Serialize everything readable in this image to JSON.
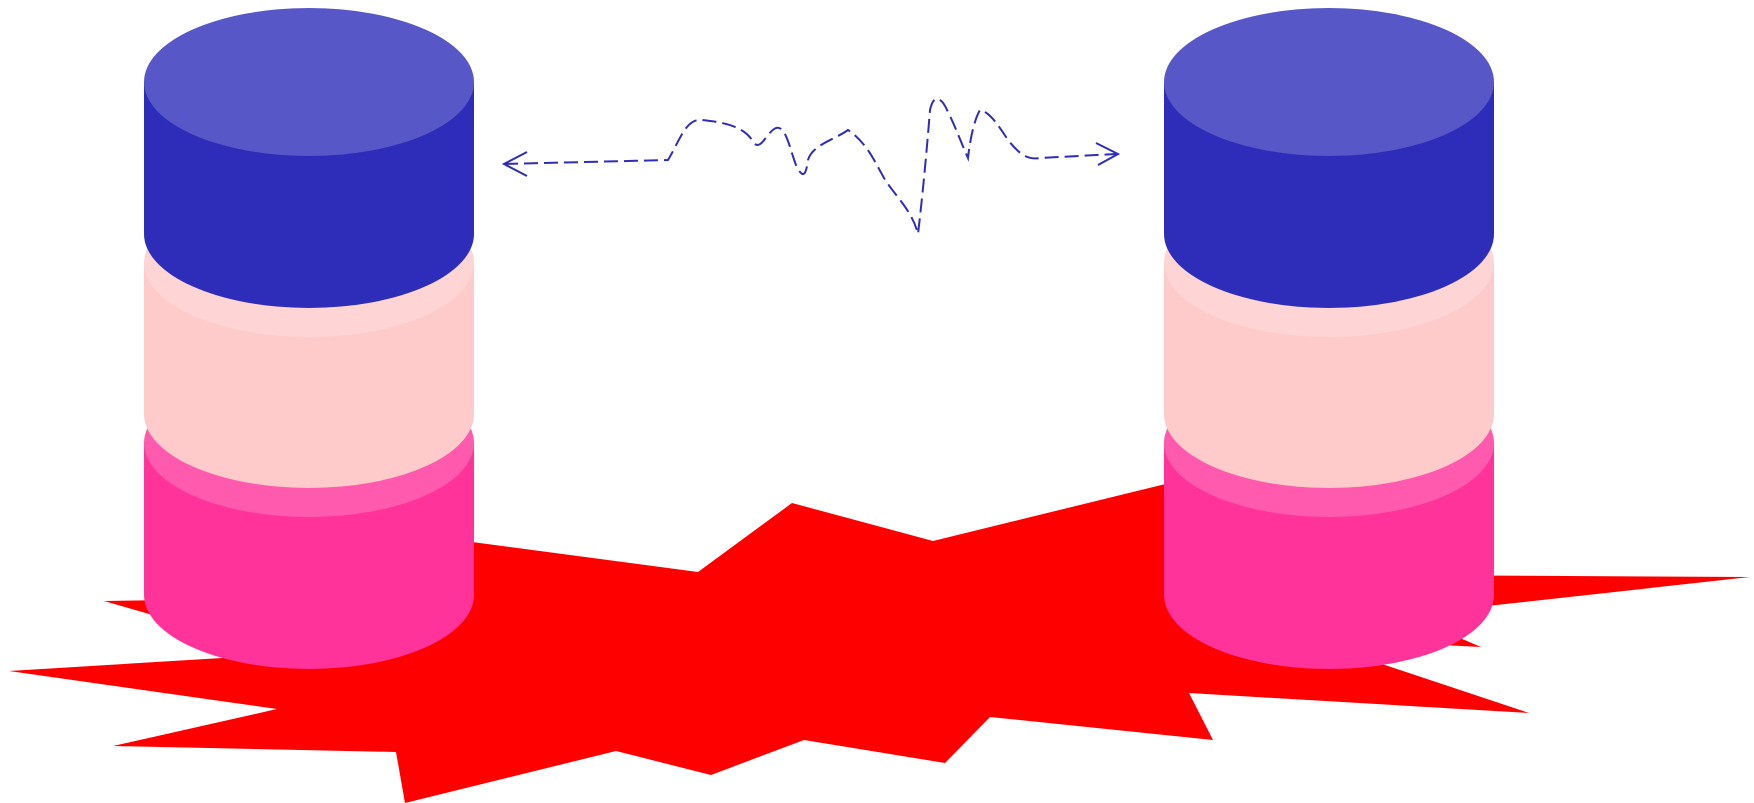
{
  "diagram": {
    "description_elements": [
      "explosion-burst",
      "left-database-stack",
      "right-database-stack",
      "network-connection-arrow"
    ],
    "colors": {
      "burst": "#ff0000",
      "top_side": "#2e2db9",
      "top_cap": "#5757c8",
      "middle_side": "#fecbca",
      "middle_cap": "#fed5d4",
      "bottom_side": "#ff3399",
      "bottom_cap": "#ff5aad",
      "connector": "#2e2db9",
      "background": "#ffffff"
    },
    "stacks": [
      {
        "name": "left-database-stack",
        "layers": [
          "bottom",
          "middle",
          "top"
        ]
      },
      {
        "name": "right-database-stack",
        "layers": [
          "bottom",
          "middle",
          "top"
        ]
      }
    ],
    "connector": {
      "style": "dashed",
      "arrowheads": "both",
      "shape": "zigzag-signal"
    }
  }
}
